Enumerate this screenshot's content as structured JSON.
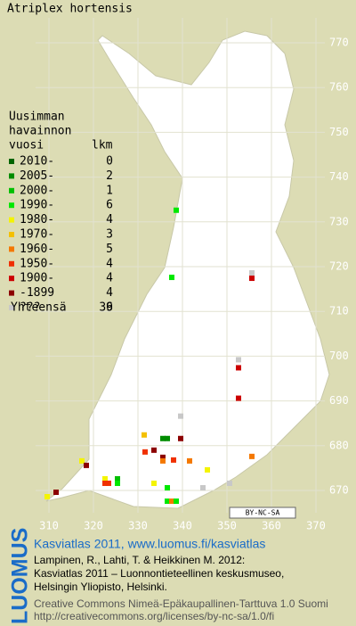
{
  "map": {
    "title": "Atriplex hortensis",
    "legend": {
      "heading": [
        "Uusimman",
        "havainnon",
        "vuosi"
      ],
      "count_heading": "lkm",
      "rows": [
        {
          "label": "2010-",
          "count": 0,
          "color": "#006400"
        },
        {
          "label": "2005-",
          "count": 2,
          "color": "#008c00"
        },
        {
          "label": "2000-",
          "count": 1,
          "color": "#00c000"
        },
        {
          "label": "1990-",
          "count": 6,
          "color": "#00e800"
        },
        {
          "label": "1980-",
          "count": 4,
          "color": "#f4f400"
        },
        {
          "label": "1970-",
          "count": 3,
          "color": "#f4c000"
        },
        {
          "label": "1960-",
          "count": 5,
          "color": "#f47800"
        },
        {
          "label": "1950-",
          "count": 4,
          "color": "#f03000"
        },
        {
          "label": "1900-",
          "count": 4,
          "color": "#cc0000"
        },
        {
          "label": "-1899",
          "count": 4,
          "color": "#8c0000"
        },
        {
          "label": "???",
          "count": 6,
          "color": "#c8c8c8"
        }
      ],
      "total_label": "Yhteensä",
      "total": 39
    },
    "xlim": [
      310,
      370
    ],
    "ylim": [
      670,
      770
    ],
    "xticks": [
      310,
      320,
      330,
      340,
      350,
      360,
      370
    ],
    "yticks": [
      670,
      680,
      690,
      700,
      710,
      720,
      730,
      740,
      750,
      760,
      770
    ],
    "points": {
      "x": [
        338.6,
        337.6,
        355.6,
        355.6,
        352.6,
        352.6,
        352.6,
        339.6,
        331.4,
        335.6,
        336.6,
        339.6,
        331.6,
        333.6,
        335.6,
        335.6,
        338,
        341.6,
        355.6,
        345.6,
        317.4,
        318.4,
        322.6,
        322.6,
        323.4,
        325.4,
        325.4,
        333.6,
        336.6,
        344.6,
        350.6,
        311.6,
        309.6,
        336.6,
        337.6,
        338.6
      ],
      "y": [
        732.6,
        717.6,
        717.4,
        718.6,
        699.2,
        697.4,
        690.6,
        686.6,
        682.4,
        681.6,
        681.6,
        681.6,
        678.6,
        679,
        677.4,
        676.6,
        676.8,
        676.6,
        677.6,
        674.6,
        676.6,
        675.6,
        672.6,
        671.6,
        671.6,
        672.6,
        671.6,
        671.6,
        670.6,
        670.6,
        671.6,
        669.6,
        668.6,
        667.6,
        667.6,
        667.6
      ],
      "class": [
        3,
        3,
        8,
        10,
        10,
        8,
        8,
        10,
        5,
        1,
        1,
        9,
        7,
        9,
        9,
        6,
        7,
        6,
        6,
        4,
        4,
        9,
        4,
        7,
        7,
        2,
        3,
        4,
        3,
        10,
        10,
        9,
        4,
        3,
        6,
        3
      ]
    },
    "license_badge": "BY-NC-SA",
    "logo": "LUOMUS",
    "footer": {
      "headline": "Kasviatlas 2011, www.luomus.fi/kasviatlas",
      "citation": [
        "Lampinen, R., Lahti, T. & Heikkinen M. 2012:",
        "Kasviatlas 2011 – Luonnontieteellinen keskusmuseo,",
        "Helsingin Yliopisto, Helsinki."
      ],
      "license": [
        "Creative Commons Nimeä-Epäkaupallinen-Tarttuva 1.0 Suomi",
        "http://creativecommons.org/licenses/by-nc-sa/1.0/fi"
      ]
    }
  }
}
